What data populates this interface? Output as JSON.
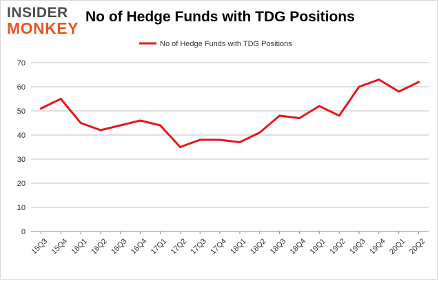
{
  "logo": {
    "line1": "INSIDER",
    "line2": "MONKEY"
  },
  "colors": {
    "series": "#e8161b",
    "grid": "#bfbfbf",
    "axis": "#8c8c8c",
    "logo_gray": "#4d4d4d",
    "logo_orange": "#e8561f"
  },
  "chart_data": {
    "type": "line",
    "title": "No of Hedge Funds with TDG Positions",
    "legend_position": "top",
    "grid": true,
    "ylim": [
      0,
      70
    ],
    "yticks": [
      0,
      10,
      20,
      30,
      40,
      50,
      60,
      70
    ],
    "categories": [
      "15Q3",
      "15Q4",
      "16Q1",
      "16Q2",
      "16Q3",
      "16Q4",
      "17Q1",
      "17Q2",
      "17Q3",
      "17Q4",
      "18Q1",
      "18Q2",
      "18Q3",
      "18Q4",
      "19Q1",
      "19Q2",
      "19Q3",
      "19Q4",
      "20Q1",
      "20Q2"
    ],
    "series": [
      {
        "name": "No of Hedge Funds with TDG Positions",
        "values": [
          51,
          55,
          45,
          42,
          44,
          46,
          44,
          35,
          38,
          38,
          37,
          41,
          48,
          47,
          52,
          48,
          60,
          63,
          58,
          62
        ]
      }
    ]
  }
}
